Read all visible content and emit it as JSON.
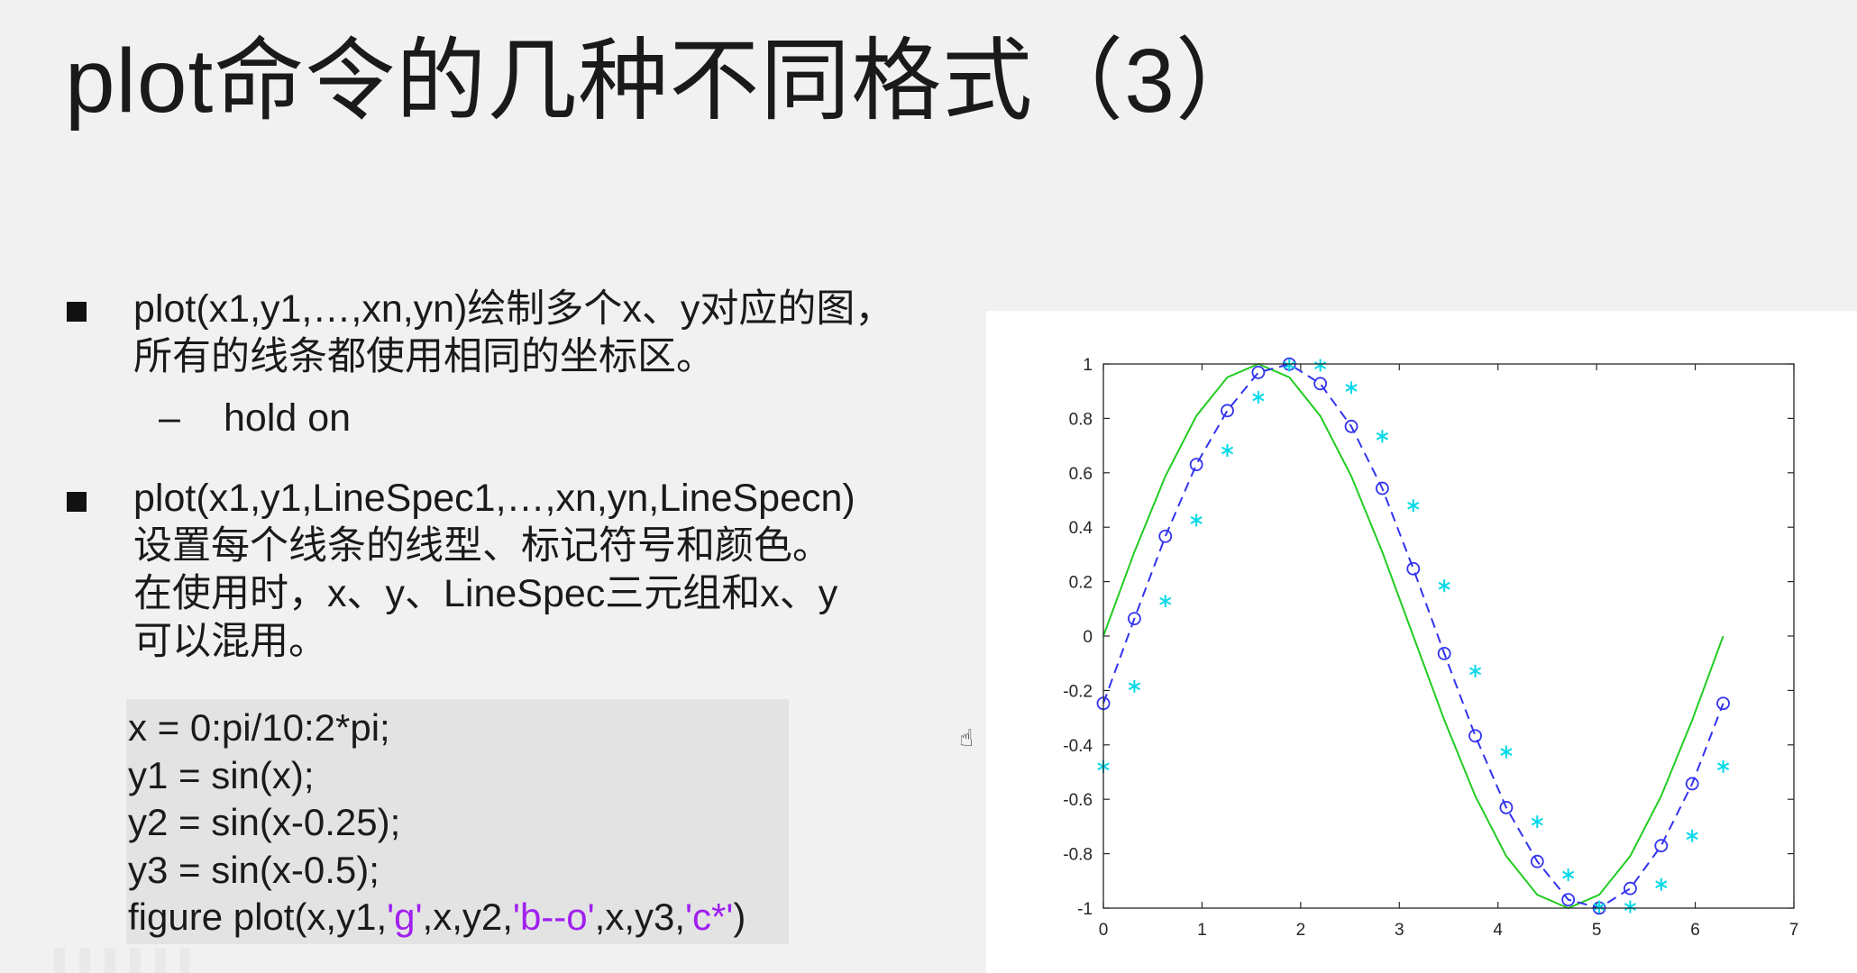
{
  "slide": {
    "title": "plot命令的几种不同格式（3）",
    "bullet1": {
      "line1": "plot(x1,y1,…,xn,yn)绘制多个x、y对应的图，",
      "line2": "所有的线条都使用相同的坐标区。",
      "sub_dash": "–",
      "sub_text": "hold on"
    },
    "bullet2": {
      "line1": "plot(x1,y1,LineSpec1,…,xn,yn,LineSpecn)",
      "line2": "设置每个线条的线型、标记符号和颜色。",
      "line3": "在使用时，x、y、LineSpec三元组和x、y",
      "line4": "可以混用。"
    },
    "code": {
      "line1": "x = 0:pi/10:2*pi;",
      "line2": "y1 = sin(x);",
      "line3": "y2 = sin(x-0.25);",
      "line4": "y3 = sin(x-0.5);",
      "line5_a": "figure plot(x,y1,",
      "line5_s1": "'g'",
      "line5_b": ",x,y2,",
      "line5_s2": "'b--o'",
      "line5_c": ",x,y3,",
      "line5_s3": "'c*'",
      "line5_d": ")"
    },
    "cursor_icon": "hand-cursor-icon"
  },
  "chart_data": {
    "type": "line",
    "title": "",
    "xlabel": "",
    "ylabel": "",
    "xlim": [
      0,
      7
    ],
    "ylim": [
      -1,
      1
    ],
    "xticks": [
      0,
      1,
      2,
      3,
      4,
      5,
      6,
      7
    ],
    "yticks": [
      -1,
      -0.8,
      -0.6,
      -0.4,
      -0.2,
      0,
      0.2,
      0.4,
      0.6,
      0.8,
      1
    ],
    "ytick_labels": [
      "-1",
      "-0.8",
      "-0.6",
      "-0.4",
      "-0.2",
      "0",
      "0.2",
      "0.4",
      "0.6",
      "0.8",
      "1"
    ],
    "grid": false,
    "legend": false,
    "x": [
      0,
      0.3142,
      0.6283,
      0.9425,
      1.2566,
      1.5708,
      1.885,
      2.1991,
      2.5133,
      2.8274,
      3.1416,
      3.4558,
      3.7699,
      4.0841,
      4.3982,
      4.7124,
      5.0265,
      5.3407,
      5.6549,
      5.969,
      6.2832
    ],
    "series": [
      {
        "color": "#22cc22",
        "style": "solid",
        "marker": "none",
        "values": [
          0,
          0.309,
          0.5878,
          0.809,
          0.9511,
          1,
          0.9511,
          0.809,
          0.5878,
          0.309,
          0,
          -0.309,
          -0.5878,
          -0.809,
          -0.9511,
          -1,
          -0.9511,
          -0.809,
          -0.5878,
          -0.309,
          0
        ]
      },
      {
        "color": "#3333ee",
        "style": "dashed",
        "marker": "circle",
        "values": [
          -0.2474,
          0.0641,
          0.3667,
          0.6303,
          0.8284,
          0.9689,
          0.9995,
          0.9278,
          0.7705,
          0.5428,
          0.2474,
          -0.0641,
          -0.3667,
          -0.6303,
          -0.8284,
          -0.9689,
          -0.9995,
          -0.9278,
          -0.7705,
          -0.5428,
          -0.2474
        ]
      },
      {
        "color": "#00d8e8",
        "style": "none",
        "marker": "asterisk",
        "values": [
          -0.4794,
          -0.1847,
          0.1285,
          0.4258,
          0.6823,
          0.8776,
          0.9953,
          0.995,
          0.9128,
          0.7342,
          0.4794,
          0.1847,
          -0.1285,
          -0.4258,
          -0.6823,
          -0.8776,
          -0.9953,
          -0.995,
          -0.9128,
          -0.7342,
          -0.4794
        ]
      }
    ]
  }
}
